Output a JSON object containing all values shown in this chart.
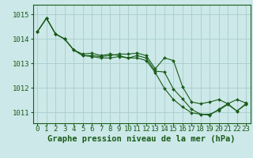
{
  "title": "Graphe pression niveau de la mer (hPa)",
  "background_color": "#cce8e8",
  "line_color": "#1a5c1a",
  "grid_color": "#aacccc",
  "ylim": [
    1010.55,
    1015.4
  ],
  "xlim": [
    -0.5,
    23.5
  ],
  "yticks": [
    1011,
    1012,
    1013,
    1014,
    1015
  ],
  "xticks": [
    0,
    1,
    2,
    3,
    4,
    5,
    6,
    7,
    8,
    9,
    10,
    11,
    12,
    13,
    14,
    15,
    16,
    17,
    18,
    19,
    20,
    21,
    22,
    23
  ],
  "series": [
    [
      1014.3,
      1014.85,
      1014.2,
      1014.0,
      1013.55,
      1013.32,
      1013.28,
      1013.22,
      1013.22,
      1013.28,
      1013.22,
      1013.32,
      1013.22,
      1012.68,
      1012.65,
      1011.95,
      1011.55,
      1011.12,
      1010.92,
      1010.88,
      1011.12,
      1011.35,
      1011.05,
      1011.35
    ],
    [
      1014.3,
      1014.85,
      1014.2,
      1014.0,
      1013.55,
      1013.32,
      1013.32,
      1013.28,
      1013.32,
      1013.38,
      1013.38,
      1013.42,
      1013.32,
      1012.78,
      1013.22,
      1013.12,
      1012.05,
      1011.42,
      1011.35,
      1011.42,
      1011.52,
      1011.35,
      1011.52,
      1011.38
    ],
    [
      1014.3,
      1014.85,
      1014.2,
      1014.0,
      1013.55,
      1013.38,
      1013.42,
      1013.32,
      1013.38,
      1013.32,
      1013.22,
      1013.22,
      1013.12,
      1012.62,
      1011.98,
      1011.52,
      1011.22,
      1010.98,
      1010.92,
      1010.92,
      1011.08,
      1011.32,
      1011.05,
      1011.32
    ]
  ],
  "tick_fontsize": 6.5,
  "title_fontsize": 7.5
}
